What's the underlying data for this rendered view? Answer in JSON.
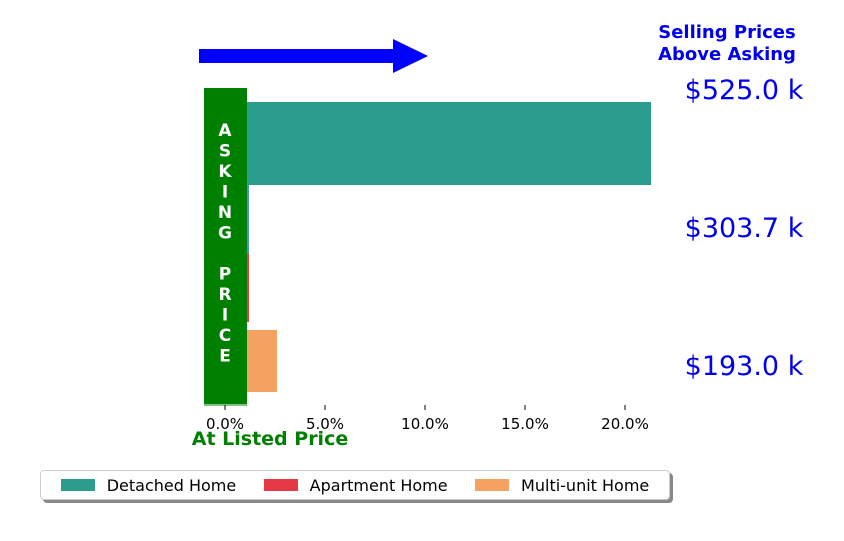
{
  "chart_data": {
    "type": "bar",
    "orientation": "horizontal",
    "xlim": [
      -1.0,
      21.5
    ],
    "x_ticks": [
      "0.0%",
      "5.0%",
      "10.0%",
      "15.0%",
      "20.0%"
    ],
    "x_tick_values": [
      0,
      5,
      10,
      15,
      20
    ],
    "series": [
      {
        "name": "Detached Home",
        "value": 21.3,
        "price_label": "$525.0 k",
        "color": "#2a9d8f"
      },
      {
        "name": "Apartment Home",
        "value": 1.2,
        "price_label": "$303.7 k",
        "color": "#e63946"
      },
      {
        "name": "Multi-unit Home",
        "value": 2.6,
        "price_label": "$193.0 k",
        "color": "#f4a261"
      }
    ],
    "annotations": {
      "above_asking_line1": "Selling Prices",
      "above_asking_line2": "Above Asking",
      "at_listed_price": "At Listed Price",
      "asking_price_letters": [
        "A",
        "S",
        "K",
        "I",
        "N",
        "G",
        "",
        "P",
        "R",
        "I",
        "C",
        "E"
      ]
    },
    "legend": "bottom",
    "grid": false
  },
  "colors": {
    "arrow": "#0000ff",
    "asking_band": "#008000",
    "price_text": "#0000ee",
    "listed_text": "#008000",
    "apartment_sliver": "#4a8fd8"
  }
}
